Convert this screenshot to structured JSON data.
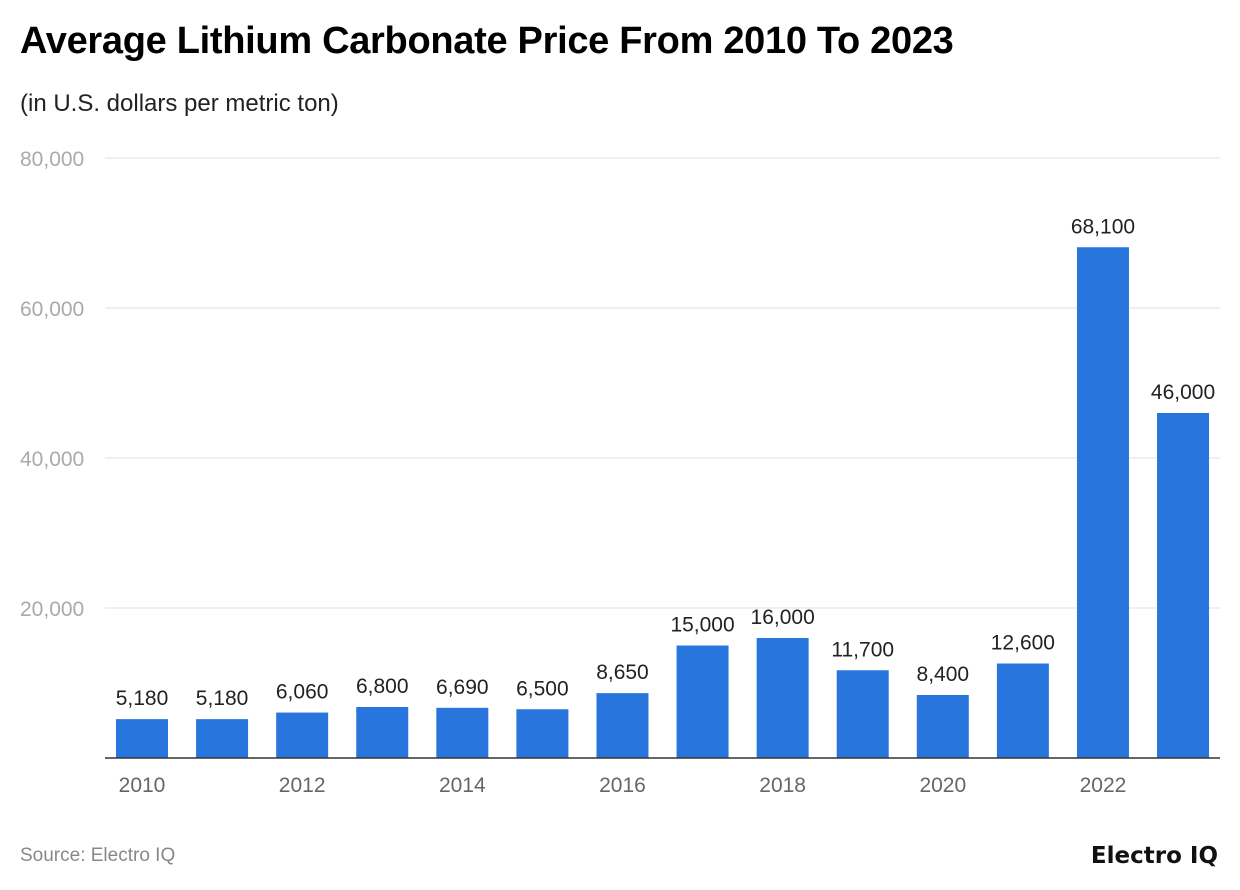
{
  "chart_data": {
    "type": "bar",
    "title": "Average Lithium Carbonate Price From 2010 To 2023",
    "subtitle": "(in U.S. dollars per metric ton)",
    "categories": [
      "2010",
      "2011",
      "2012",
      "2013",
      "2014",
      "2015",
      "2016",
      "2017",
      "2018",
      "2019",
      "2020",
      "2021",
      "2022",
      "2023"
    ],
    "values": [
      5180,
      5180,
      6060,
      6800,
      6690,
      6500,
      8650,
      15000,
      16000,
      11700,
      8400,
      12600,
      68100,
      46000
    ],
    "data_labels": [
      "5,180",
      "5,180",
      "6,060",
      "6,800",
      "6,690",
      "6,500",
      "8,650",
      "15,000",
      "16,000",
      "11,700",
      "8,400",
      "12,600",
      "68,100",
      "46,000"
    ],
    "x_tick_labels": [
      "2010",
      "2012",
      "2014",
      "2016",
      "2018",
      "2020",
      "2022"
    ],
    "y_ticks": [
      20000,
      40000,
      60000,
      80000
    ],
    "y_tick_labels": [
      "20,000",
      "40,000",
      "60,000",
      "80,000"
    ],
    "ylim": [
      0,
      80000
    ],
    "xlabel": "",
    "ylabel": "",
    "grid": true,
    "bar_color": "#2876DD"
  },
  "footer": {
    "source": "Source: Electro IQ",
    "logo": "Electro IQ"
  }
}
